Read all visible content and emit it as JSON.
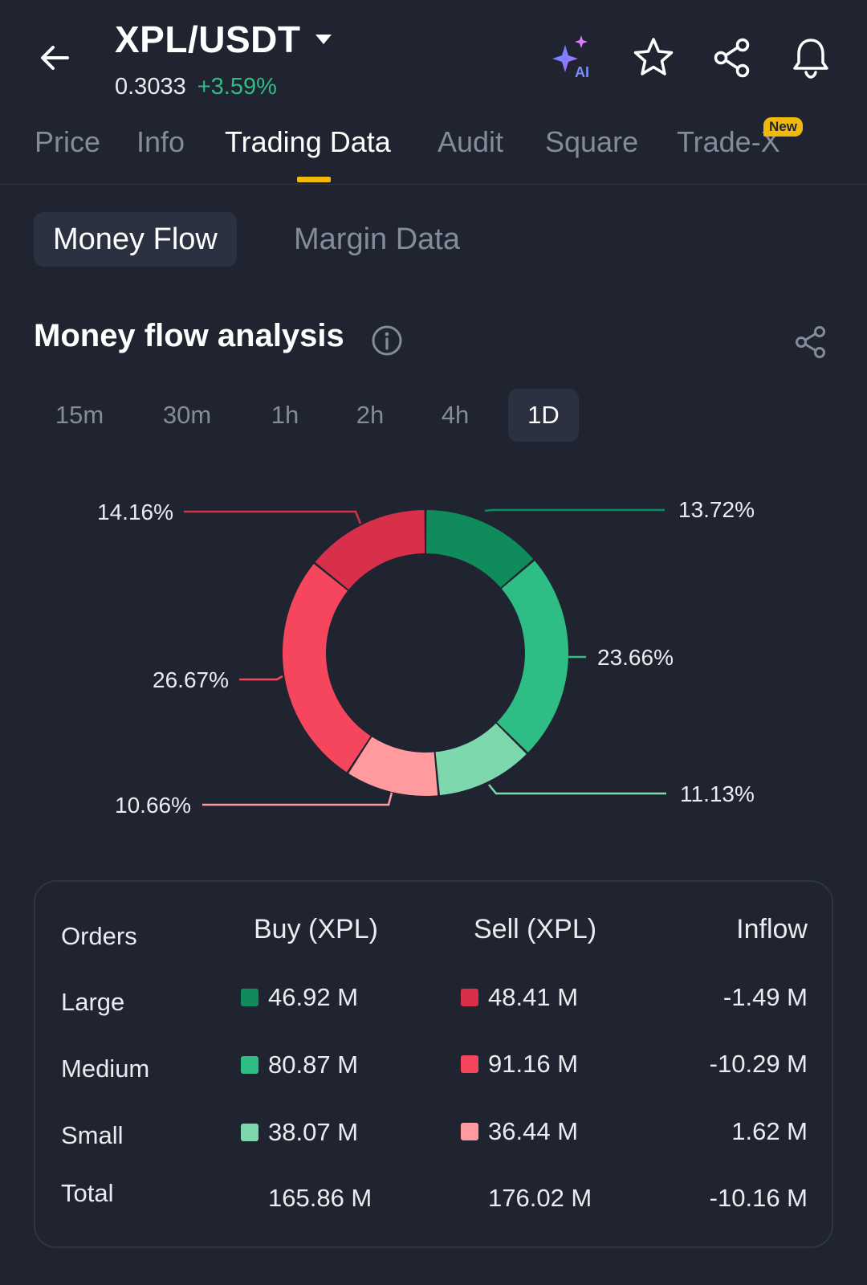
{
  "header": {
    "pair": "XPL/USDT",
    "price": "0.3033",
    "change": "+3.59%",
    "ai_label": "AI"
  },
  "tabs": [
    {
      "label": "Price"
    },
    {
      "label": "Info"
    },
    {
      "label": "Trading Data"
    },
    {
      "label": "Audit"
    },
    {
      "label": "Square"
    },
    {
      "label": "Trade-X"
    }
  ],
  "active_tab": "Trading Data",
  "new_badge": "New",
  "subtabs": {
    "money_flow": "Money Flow",
    "margin_data": "Margin Data"
  },
  "section": {
    "title": "Money flow analysis"
  },
  "time_tabs": [
    "15m",
    "30m",
    "1h",
    "2h",
    "4h",
    "1D"
  ],
  "active_time_tab": "1D",
  "chart_data": {
    "type": "pie",
    "donut": true,
    "slices": [
      {
        "label": "13.72%",
        "value": 13.72,
        "color": "#0f8b5c"
      },
      {
        "label": "23.66%",
        "value": 23.66,
        "color": "#2ebd85"
      },
      {
        "label": "11.13%",
        "value": 11.13,
        "color": "#7dd8ae"
      },
      {
        "label": "10.66%",
        "value": 10.66,
        "color": "#ff9a9e"
      },
      {
        "label": "26.67%",
        "value": 26.67,
        "color": "#f6465d"
      },
      {
        "label": "14.16%",
        "value": 14.16,
        "color": "#d8304a"
      }
    ]
  },
  "table": {
    "headers": {
      "orders": "Orders",
      "buy": "Buy (XPL)",
      "sell": "Sell (XPL)",
      "inflow": "Inflow"
    },
    "rows": [
      {
        "order": "Large",
        "buy": "46.92 M",
        "sell": "48.41 M",
        "inflow": "-1.49 M",
        "buy_color": "#0f8b5c",
        "sell_color": "#d8304a"
      },
      {
        "order": "Medium",
        "buy": "80.87 M",
        "sell": "91.16 M",
        "inflow": "-10.29 M",
        "buy_color": "#2ebd85",
        "sell_color": "#f6465d"
      },
      {
        "order": "Small",
        "buy": "38.07 M",
        "sell": "36.44 M",
        "inflow": "1.62 M",
        "buy_color": "#7dd8ae",
        "sell_color": "#ff9a9e"
      }
    ],
    "total": {
      "order": "Total",
      "buy": "165.86 M",
      "sell": "176.02 M",
      "inflow": "-10.16 M"
    }
  }
}
